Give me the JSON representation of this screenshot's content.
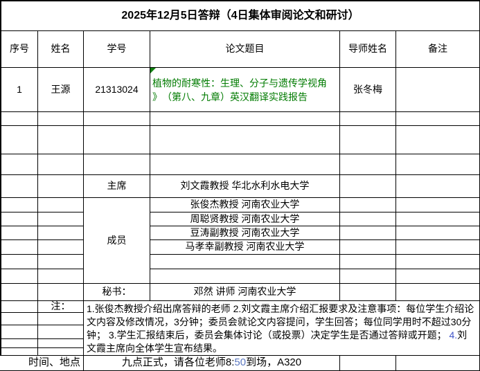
{
  "title": "2025年12月5日答辩（4日集体审阅论文和研讨）",
  "header": {
    "seq": "序号",
    "name": "姓名",
    "student_id": "学号",
    "thesis_title": "论文题目",
    "advisor": "导师姓名",
    "remark": "备注"
  },
  "student": {
    "seq": "1",
    "name": "王源",
    "student_id": "21313024",
    "thesis_title": "植物的耐寒性：生理、分子与遗传学视角\n》　（第八、九章）英汉翻译实践报告",
    "advisor": "张冬梅",
    "remark": ""
  },
  "committee": {
    "chair_label": "主席",
    "chair": "刘文霞教授  华北水利水电大学",
    "member_label": "成员",
    "members": [
      "张俊杰教授  河南农业大学",
      "周聪贤教授  河南农业大学",
      "豆涛副教授  河南农业大学",
      "马孝幸副教授  河南农业大学"
    ],
    "secretary_label": "秘书：",
    "secretary": "邓然  讲师  河南农业大学"
  },
  "notes": {
    "label": "注：",
    "parts": [
      {
        "text": "1.张俊杰教授介绍出席答辩的老师 2.刘文霞主席介绍汇报要求及注意事项：每位学生介绍论文内容及修改情况，3分钟；委员会就论文内容提问，学生回答；每位同学用时不超过30分钟； 3.学生汇报结束后，委员会集体讨论（或投票）决定学生是否通过答辩或开题； ",
        "color": "#000000"
      },
      {
        "text": "4.",
        "color": "#4155c8"
      },
      {
        "text": "刘文霞主席向全体学生宣布结果。",
        "color": "#000000"
      }
    ]
  },
  "schedule": {
    "label": "时间、地点",
    "parts": [
      {
        "text": "九点正式，请各位老师8:",
        "color": "#000000"
      },
      {
        "text": "50",
        "color": "#5b77c0"
      },
      {
        "text": "到场，A320",
        "color": "#000000"
      }
    ]
  },
  "colors": {
    "thesis_text": "#007b00",
    "error_indicator": "#0f7f0f",
    "border": "#000000"
  }
}
